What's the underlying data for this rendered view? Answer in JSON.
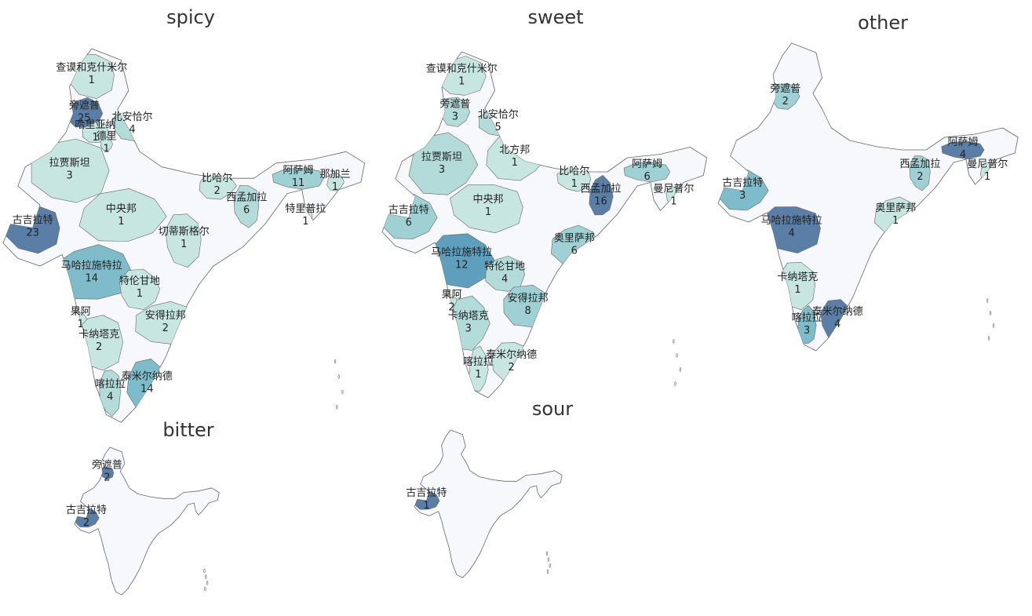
{
  "colors": {
    "base": "#f7f8fb",
    "scale": [
      "#c7e6e0",
      "#b3dbd9",
      "#9fd0d4",
      "#7ebccc",
      "#5f9fbe",
      "#5a7ea6"
    ],
    "stroke": "#666666",
    "text": "#222222"
  },
  "chart_data": [
    {
      "type": "choropleth",
      "title": "spicy",
      "max": 25,
      "regions": [
        {
          "name": "查谟和克什米尔",
          "value": 1
        },
        {
          "name": "旁遮普",
          "value": 25
        },
        {
          "name": "北安恰尔",
          "value": 4
        },
        {
          "name": "哈里亚纳",
          "value": 1
        },
        {
          "name": "德里",
          "value": 1
        },
        {
          "name": "拉贾斯坦",
          "value": 3
        },
        {
          "name": "比哈尔",
          "value": 2
        },
        {
          "name": "阿萨姆",
          "value": 11
        },
        {
          "name": "那加兰",
          "value": 1
        },
        {
          "name": "西孟加拉",
          "value": 6
        },
        {
          "name": "中央邦",
          "value": 1
        },
        {
          "name": "古吉拉特",
          "value": 23
        },
        {
          "name": "特里普拉",
          "value": 1
        },
        {
          "name": "切蒂斯格尔",
          "value": 1
        },
        {
          "name": "马哈拉施特拉",
          "value": 14
        },
        {
          "name": "特伦甘地",
          "value": 1
        },
        {
          "name": "安得拉邦",
          "value": 2
        },
        {
          "name": "果阿",
          "value": 1
        },
        {
          "name": "卡纳塔克",
          "value": 2
        },
        {
          "name": "泰米尔纳德",
          "value": 14
        },
        {
          "name": "喀拉拉",
          "value": 4
        }
      ]
    },
    {
      "type": "choropleth",
      "title": "sweet",
      "max": 16,
      "regions": [
        {
          "name": "查谟和克什米尔",
          "value": 1
        },
        {
          "name": "旁遮普",
          "value": 3
        },
        {
          "name": "北安恰尔",
          "value": 5
        },
        {
          "name": "北方邦",
          "value": 1
        },
        {
          "name": "阿萨姆",
          "value": 6
        },
        {
          "name": "拉贾斯坦",
          "value": 3
        },
        {
          "name": "比哈尔",
          "value": 1
        },
        {
          "name": "古吉拉特",
          "value": 6
        },
        {
          "name": "中央邦",
          "value": 1
        },
        {
          "name": "西孟加拉",
          "value": 16
        },
        {
          "name": "曼尼普尔",
          "value": 1
        },
        {
          "name": "奥里萨邦",
          "value": 6
        },
        {
          "name": "马哈拉施特拉",
          "value": 12
        },
        {
          "name": "特伦甘地",
          "value": 4
        },
        {
          "name": "安得拉邦",
          "value": 8
        },
        {
          "name": "果阿",
          "value": 2
        },
        {
          "name": "卡纳塔克",
          "value": 3
        },
        {
          "name": "泰米尔纳德",
          "value": 2
        },
        {
          "name": "喀拉拉",
          "value": 1
        }
      ]
    },
    {
      "type": "choropleth",
      "title": "other",
      "max": 4,
      "regions": [
        {
          "name": "旁遮普",
          "value": 2
        },
        {
          "name": "阿萨姆",
          "value": 4
        },
        {
          "name": "古吉拉特",
          "value": 3
        },
        {
          "name": "西孟加拉",
          "value": 2
        },
        {
          "name": "曼尼普尔",
          "value": 1
        },
        {
          "name": "马哈拉施特拉",
          "value": 4
        },
        {
          "name": "奥里萨邦",
          "value": 1
        },
        {
          "name": "卡纳塔克",
          "value": 1
        },
        {
          "name": "喀拉拉",
          "value": 3
        },
        {
          "name": "泰米尔纳德",
          "value": 4
        }
      ]
    },
    {
      "type": "choropleth",
      "title": "bitter",
      "max": 2,
      "regions": [
        {
          "name": "旁遮普",
          "value": 2
        },
        {
          "name": "古吉拉特",
          "value": 2
        }
      ]
    },
    {
      "type": "choropleth",
      "title": "sour",
      "max": 1,
      "regions": [
        {
          "name": "古吉拉特",
          "value": 1
        }
      ]
    }
  ]
}
